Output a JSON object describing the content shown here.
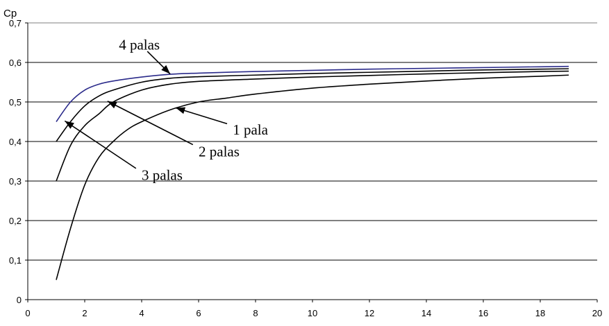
{
  "chart_data": {
    "type": "line",
    "title": "",
    "xlabel": "",
    "ylabel": "Cp",
    "xlim": [
      0,
      20
    ],
    "ylim": [
      0,
      0.7
    ],
    "x_ticks": [
      "0",
      "2",
      "4",
      "6",
      "8",
      "10",
      "12",
      "14",
      "16",
      "18",
      "20"
    ],
    "y_ticks": [
      "0",
      "0,1",
      "0,2",
      "0,3",
      "0,4",
      "0,5",
      "0,6",
      "0,7"
    ],
    "grid": "horizontal",
    "colors": {
      "line": "#000000",
      "four_blades": "#2a2a8a",
      "grid": "#000000"
    },
    "series": [
      {
        "name": "1 pala",
        "x": [
          1,
          1.5,
          2,
          2.5,
          3,
          3.5,
          4,
          5,
          6,
          7,
          8,
          10,
          12,
          14,
          16,
          18,
          19
        ],
        "y": [
          0.05,
          0.18,
          0.29,
          0.36,
          0.4,
          0.43,
          0.45,
          0.48,
          0.5,
          0.51,
          0.52,
          0.535,
          0.545,
          0.553,
          0.56,
          0.565,
          0.568
        ]
      },
      {
        "name": "2 palas",
        "x": [
          1,
          1.5,
          2,
          2.5,
          3,
          4,
          5,
          6,
          8,
          10,
          12,
          14,
          16,
          18,
          19
        ],
        "y": [
          0.3,
          0.39,
          0.44,
          0.47,
          0.5,
          0.53,
          0.545,
          0.552,
          0.558,
          0.563,
          0.567,
          0.571,
          0.574,
          0.577,
          0.578
        ]
      },
      {
        "name": "3 palas",
        "x": [
          1,
          1.5,
          2,
          2.5,
          3,
          4,
          5,
          6,
          8,
          10,
          12,
          14,
          16,
          18,
          19
        ],
        "y": [
          0.4,
          0.45,
          0.49,
          0.515,
          0.53,
          0.55,
          0.56,
          0.564,
          0.568,
          0.572,
          0.575,
          0.578,
          0.581,
          0.583,
          0.584
        ]
      },
      {
        "name": "4 palas",
        "x": [
          1,
          1.5,
          2,
          2.5,
          3,
          4,
          5,
          6,
          8,
          10,
          12,
          14,
          16,
          18,
          19
        ],
        "y": [
          0.45,
          0.5,
          0.53,
          0.545,
          0.553,
          0.563,
          0.57,
          0.573,
          0.577,
          0.58,
          0.583,
          0.585,
          0.587,
          0.589,
          0.59
        ]
      }
    ],
    "annotations": [
      {
        "text": "4 palas",
        "series": "4 palas",
        "text_at": [
          3.2,
          0.645
        ],
        "arrow_from": [
          4.2,
          0.628
        ],
        "arrow_to": [
          5.0,
          0.571
        ]
      },
      {
        "text": "1 pala",
        "series": "1 pala",
        "text_at": [
          7.2,
          0.43
        ],
        "arrow_from": [
          7.0,
          0.445
        ],
        "arrow_to": [
          5.2,
          0.485
        ]
      },
      {
        "text": "2 palas",
        "series": "2 palas",
        "text_at": [
          6.0,
          0.375
        ],
        "arrow_from": [
          5.8,
          0.392
        ],
        "arrow_to": [
          2.8,
          0.502
        ]
      },
      {
        "text": "3 palas",
        "series": "3 palas",
        "text_at": [
          4.0,
          0.315
        ],
        "arrow_from": [
          3.8,
          0.332
        ],
        "arrow_to": [
          1.3,
          0.452
        ]
      }
    ]
  }
}
